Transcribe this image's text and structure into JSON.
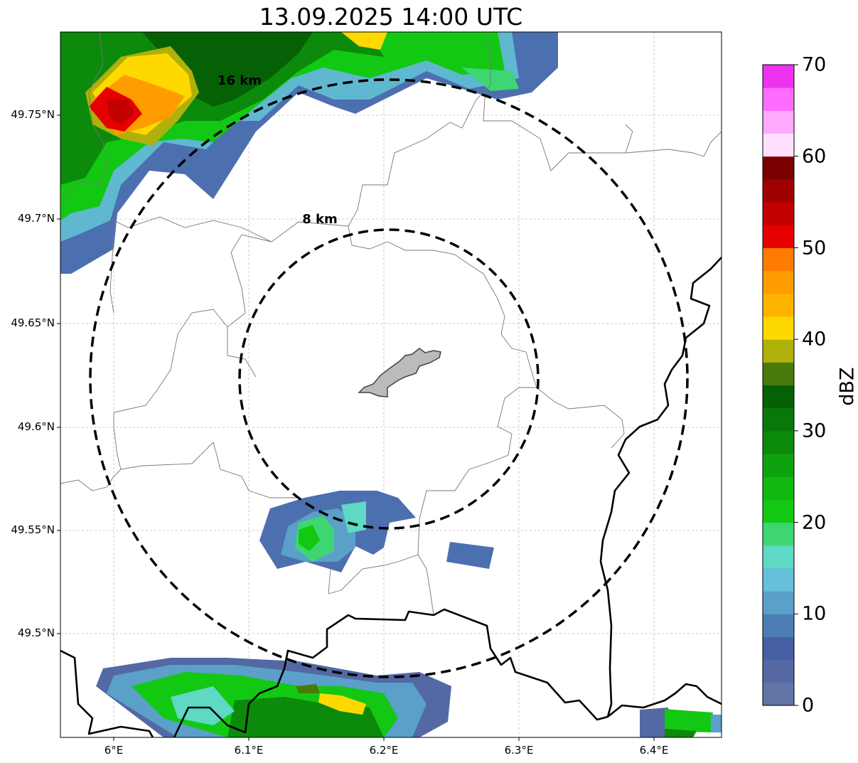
{
  "title": "13.09.2025 14:00 UTC",
  "map": {
    "lat_ticks": [
      "49.75°N",
      "49.7°N",
      "49.65°N",
      "49.6°N",
      "49.55°N",
      "49.5°N"
    ],
    "lon_ticks": [
      "6°E",
      "6.1°E",
      "6.2°E",
      "6.3°E",
      "6.4°E"
    ],
    "range_rings": [
      {
        "label": "16 km",
        "radius_km": 16
      },
      {
        "label": "8 km",
        "radius_km": 8
      }
    ]
  },
  "colorbar": {
    "label": "dBZ",
    "range": [
      0,
      70
    ],
    "step": 2.5,
    "ticks": [
      "0",
      "10",
      "20",
      "30",
      "40",
      "50",
      "60",
      "70"
    ],
    "colors": [
      "#6375a6",
      "#5468a3",
      "#4660a6",
      "#4c7db5",
      "#5aa0c8",
      "#64c0dc",
      "#5fd8c4",
      "#3ed672",
      "#12c812",
      "#10b810",
      "#0ea20e",
      "#0b8a0b",
      "#087808",
      "#066006",
      "#4a7a0a",
      "#b0b00a",
      "#ffd800",
      "#ffb400",
      "#ff9c00",
      "#ff7c00",
      "#e60000",
      "#c20000",
      "#a00000",
      "#7a0000",
      "#ffe0ff",
      "#ffaaff",
      "#ff6cff",
      "#ee33ee"
    ]
  }
}
